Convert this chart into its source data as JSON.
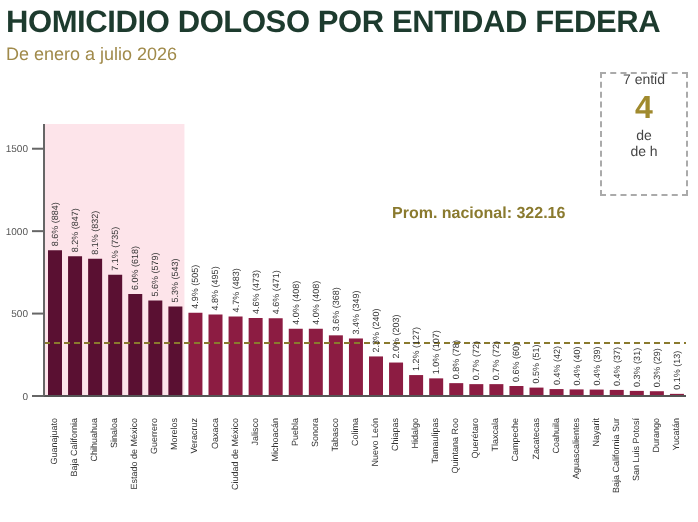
{
  "chart_data": {
    "type": "bar",
    "title": "HOMICIDIO DOLOSO POR ENTIDAD FEDERA",
    "subtitle": "De enero a julio 2026",
    "categories": [
      "Guanajuato",
      "Baja California",
      "Chihuahua",
      "Sinaloa",
      "Estado de México",
      "Guerrero",
      "Morelos",
      "Veracruz",
      "Oaxaca",
      "Ciudad de México",
      "Jalisco",
      "Michoacán",
      "Puebla",
      "Sonora",
      "Tabasco",
      "Colima",
      "Nuevo León",
      "Chiapas",
      "Hidalgo",
      "Tamaulipas",
      "Quintana Roo",
      "Querétaro",
      "Tlaxcala",
      "Campeche",
      "Zacatecas",
      "Coahuila",
      "Aguascalientes",
      "Nayarit",
      "Baja California Sur",
      "San Luis Potosí",
      "Durango",
      "Yucatán"
    ],
    "values": [
      884,
      847,
      832,
      735,
      618,
      579,
      543,
      505,
      495,
      483,
      473,
      471,
      408,
      408,
      368,
      349,
      240,
      203,
      127,
      107,
      78,
      72,
      72,
      60,
      51,
      42,
      40,
      39,
      37,
      31,
      29,
      13
    ],
    "value_labels": [
      "8.6% (884)",
      "8.2% (847)",
      "8.1% (832)",
      "7.1% (735)",
      "6.0% (618)",
      "5.6% (579)",
      "5.3% (543)",
      "4.9% (505)",
      "4.8% (495)",
      "4.7% (483)",
      "4.6% (473)",
      "4.6% (471)",
      "4.0% (408)",
      "4.0% (408)",
      "3.6% (368)",
      "3.4% (349)",
      "2.3% (240)",
      "2.0% (203)",
      "1.2% (127)",
      "1.0% (107)",
      "0.8% (78)",
      "0.7% (72)",
      "0.7% (72)",
      "0.6% (60)",
      "0.5% (51)",
      "0.4% (42)",
      "0.4% (40)",
      "0.4% (39)",
      "0.4% (37)",
      "0.3% (31)",
      "0.3% (29)",
      "0.1% (13)"
    ],
    "colors": [
      "#5a1032",
      "#5a1032",
      "#5a1032",
      "#5a1032",
      "#5a1032",
      "#5a1032",
      "#5a1032",
      "#8c1c42",
      "#8c1c42",
      "#8c1c42",
      "#8c1c42",
      "#8c1c42",
      "#8c1c42",
      "#8c1c42",
      "#8c1c42",
      "#8c1c42",
      "#8c1c42",
      "#8c1c42",
      "#8c1c42",
      "#8c1c42",
      "#8c1c42",
      "#8c1c42",
      "#8c1c42",
      "#8c1c42",
      "#8c1c42",
      "#8c1c42",
      "#8c1c42",
      "#8c1c42",
      "#8c1c42",
      "#8c1c42",
      "#8c1c42",
      "#8c1c42"
    ],
    "ylim": [
      0,
      1650
    ],
    "yticks": [
      0,
      500,
      1000,
      1500
    ],
    "grid": false,
    "ref_lines": [
      {
        "axis": "y",
        "value": 322.16,
        "label": "Prom. nacional: 322.16",
        "color": "#8a7a2e",
        "line_style": "dashed"
      }
    ],
    "bands": [
      {
        "axis": "x",
        "from": "Guanajuato",
        "to": "Morelos",
        "color": "#fde4ea"
      }
    ],
    "annotations": [
      "7 entid",
      "4",
      "de",
      "de h"
    ]
  }
}
